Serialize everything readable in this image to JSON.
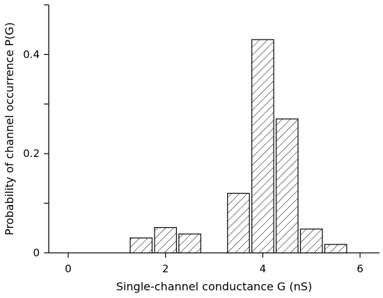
{
  "chart_data": {
    "type": "bar",
    "title": "",
    "xlabel": "Single-channel conductance G (nS)",
    "ylabel": "Probability of channel occurrence P(G)",
    "xlim": [
      -0.4,
      6.4
    ],
    "ylim": [
      0,
      0.5
    ],
    "x_ticks": [
      0,
      2,
      4,
      6
    ],
    "x_tick_labels": [
      "0",
      "2",
      "4",
      "6"
    ],
    "y_ticks": [
      0,
      0.1,
      0.2,
      0.3,
      0.4,
      0.5
    ],
    "y_tick_labels": [
      "0",
      "",
      "0.2",
      "",
      "0.4",
      ""
    ],
    "bar_width": 0.45,
    "bars": [
      {
        "x": 1.5,
        "value": 0.03
      },
      {
        "x": 2.0,
        "value": 0.051
      },
      {
        "x": 2.5,
        "value": 0.038
      },
      {
        "x": 3.5,
        "value": 0.12
      },
      {
        "x": 4.0,
        "value": 0.43
      },
      {
        "x": 4.5,
        "value": 0.27
      },
      {
        "x": 5.0,
        "value": 0.048
      },
      {
        "x": 5.5,
        "value": 0.017
      }
    ],
    "fill_pattern": "diagonal-hatch",
    "grid": false,
    "legend": "none"
  }
}
